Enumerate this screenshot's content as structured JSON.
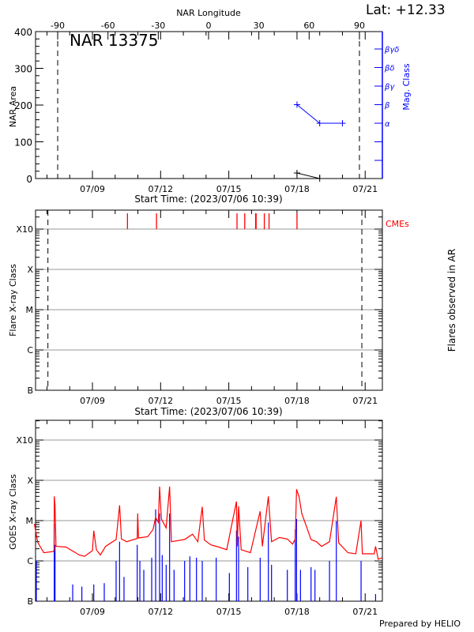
{
  "header": {
    "lat_label": "Lat: +12.33",
    "region_label": "NAR 13375",
    "credit": "Prepared by HELIO"
  },
  "chart_data": [
    {
      "type": "line",
      "panel": "nar",
      "xlabel": "Start Time: (2023/07/06 10:39)",
      "x_top_label": "NAR Longitude",
      "ylabel": "NAR Area",
      "y2label": "Mag. Class",
      "xrange": [
        "07/06 10:39",
        "07/21 18:00"
      ],
      "x_ticks": [
        "07/09",
        "07/12",
        "07/15",
        "07/18",
        "07/21"
      ],
      "x_top_ticks": [
        "-90",
        "-60",
        "-30",
        "0",
        "30",
        "60",
        "90"
      ],
      "ylim": [
        0,
        400
      ],
      "y_ticks": [
        "0",
        "100",
        "200",
        "300",
        "400"
      ],
      "y2_ticks": [
        "α",
        "β",
        "βγ",
        "βδ",
        "βγδ"
      ],
      "limb_longitudes": [
        -90,
        90
      ],
      "colors": {
        "area": "#000000",
        "mag_class": "#0000ff"
      },
      "area": [
        {
          "t": "07/18 00:00",
          "v": 15
        },
        {
          "t": "07/19 00:00",
          "v": 0
        }
      ],
      "mag_class": [
        {
          "t": "07/18 00:00",
          "v": "β"
        },
        {
          "t": "07/19 00:00",
          "v": "α"
        },
        {
          "t": "07/20 00:00",
          "v": "α"
        }
      ]
    },
    {
      "type": "scatter",
      "panel": "flares",
      "xlabel": "Start Time: (2023/07/06 10:39)",
      "ylabel": "Flare X-ray Class",
      "y2label": "Flares observed in AR",
      "legend": "CMEs",
      "y_scale": "log",
      "y_ticks": [
        "B",
        "C",
        "M",
        "X",
        "X10"
      ],
      "x_ticks": [
        "07/09",
        "07/12",
        "07/15",
        "07/18",
        "07/21"
      ],
      "grid": true,
      "limb_times": [
        "07/07 01:00",
        "07/20 20:30"
      ],
      "colors": {
        "cme": "#ff0000"
      },
      "flares": [],
      "cmes": [
        "07/10 13:00",
        "07/11 19:40",
        "07/15 08:40",
        "07/15 16:50",
        "07/16 04:20",
        "07/16 04:50",
        "07/16 13:30",
        "07/16 18:30",
        "07/18 00:00"
      ]
    },
    {
      "type": "line",
      "panel": "goes",
      "ylabel": "GOES X-ray Class",
      "y_scale": "log",
      "y_ticks": [
        "B",
        "C",
        "M",
        "X",
        "X10"
      ],
      "x_ticks": [
        "07/09",
        "07/12",
        "07/15",
        "07/18",
        "07/21"
      ],
      "grid": true,
      "series": [
        {
          "color": "#ff0000",
          "points": [
            [
              "07/06 10:39",
              "C8.3"
            ],
            [
              "07/06 14:10",
              "C2.9"
            ],
            [
              "07/06 20:35",
              "C1.6"
            ],
            [
              "07/07 06:20",
              "C1.7"
            ],
            [
              "07/07 07:25",
              "C1.8"
            ],
            [
              "07/07 07:40",
              "M4.0"
            ],
            [
              "07/07 08:30",
              "M2.4"
            ],
            [
              "07/07 09:35",
              "C2.3"
            ],
            [
              "07/07 20:10",
              "C2.2"
            ],
            [
              "07/08 10:05",
              "C1.4"
            ],
            [
              "07/08 15:40",
              "C1.3"
            ],
            [
              "07/09 00:00",
              "C1.8"
            ],
            [
              "07/09 01:25",
              "C5.6"
            ],
            [
              "07/09 04:10",
              "C1.9"
            ],
            [
              "07/09 08:20",
              "C1.4"
            ],
            [
              "07/09 13:55",
              "C2.3"
            ],
            [
              "07/10 01:00",
              "C3.4"
            ],
            [
              "07/10 04:40",
              "M2.4"
            ],
            [
              "07/10 06:35",
              "C3.5"
            ],
            [
              "07/10 12:10",
              "C3.0"
            ],
            [
              "07/10 23:17",
              "C3.6"
            ],
            [
              "07/10 23:50",
              "M1.5"
            ],
            [
              "07/11 00:40",
              "C3.7"
            ],
            [
              "07/11 10:25",
              "C4.0"
            ],
            [
              "07/11 16:00",
              "C6.0"
            ],
            [
              "07/11 18:45",
              "M1.2"
            ],
            [
              "07/11 21:32",
              "C9.0"
            ],
            [
              "07/11 22:55",
              "M7.0"
            ],
            [
              "07/12 00:52",
              "M1.1"
            ],
            [
              "07/12 05:52",
              "C6.6"
            ],
            [
              "07/12 09:29",
              "M7.0"
            ],
            [
              "07/12 11:25",
              "C3.0"
            ],
            [
              "07/13 01:20",
              "C3.4"
            ],
            [
              "07/13 09:40",
              "C4.6"
            ],
            [
              "07/13 15:15",
              "C3.0"
            ],
            [
              "07/13 19:58",
              "M2.2"
            ],
            [
              "07/13 22:10",
              "C3.3"
            ],
            [
              "07/14 05:08",
              "C2.5"
            ],
            [
              "07/14 13:30",
              "C2.2"
            ],
            [
              "07/14 21:50",
              "C1.9"
            ],
            [
              "07/15 08:07",
              "M3.0"
            ],
            [
              "07/15 09:00",
              "C2.3"
            ],
            [
              "07/15 10:20",
              "M2.3"
            ],
            [
              "07/15 13:07",
              "C1.9"
            ],
            [
              "07/15 22:52",
              "C1.6"
            ],
            [
              "07/16 09:08",
              "M1.7"
            ],
            [
              "07/16 11:24",
              "C2.3"
            ],
            [
              "07/16 17:47",
              "M4.0"
            ],
            [
              "07/16 21:07",
              "C3.0"
            ],
            [
              "07/17 05:28",
              "C3.8"
            ],
            [
              "07/17 13:48",
              "C3.5"
            ],
            [
              "07/17 19:22",
              "C2.6"
            ],
            [
              "07/17 22:08",
              "C3.5"
            ],
            [
              "07/17 23:32",
              "M6.0"
            ],
            [
              "07/18 02:18",
              "M3.8"
            ],
            [
              "07/18 05:05",
              "M1.5"
            ],
            [
              "07/18 09:15",
              "C8.0"
            ],
            [
              "07/18 14:50",
              "C3.4"
            ],
            [
              "07/18 20:24",
              "C3.0"
            ],
            [
              "07/19 01:58",
              "C2.3"
            ],
            [
              "07/19 10:20",
              "C3.0"
            ],
            [
              "07/19 17:32",
              "M3.9"
            ],
            [
              "07/19 20:02",
              "C2.8"
            ],
            [
              "07/20 05:46",
              "C1.6"
            ],
            [
              "07/20 14:07",
              "C1.5"
            ],
            [
              "07/20 19:40",
              "M1.0"
            ],
            [
              "07/20 21:04",
              "C1.5"
            ],
            [
              "07/21 09:36",
              "C1.5"
            ],
            [
              "07/21 11:00",
              "C2.3"
            ],
            [
              "07/21 13:48",
              "C1.1"
            ],
            [
              "07/21 18:00",
              "C1.2"
            ]
          ]
        },
        {
          "color": "#0000ff",
          "points": [
            [
              "07/06 12:45",
              "C1.0"
            ],
            [
              "07/07 07:40",
              "C8.3"
            ],
            [
              "07/07 08:30",
              "C2.5"
            ],
            [
              "07/08 03:10",
              "B2.6"
            ],
            [
              "07/08 12:50",
              "B2.3"
            ],
            [
              "07/09 01:25",
              "B2.6"
            ],
            [
              "07/09 12:30",
              "B2.8"
            ],
            [
              "07/10 01:00",
              "C1.0"
            ],
            [
              "07/10 04:40",
              "C3.0"
            ],
            [
              "07/10 09:20",
              "B4.0"
            ],
            [
              "07/10 23:17",
              "C2.5"
            ],
            [
              "07/11 02:05",
              "C1.0"
            ],
            [
              "07/11 06:15",
              "B6.0"
            ],
            [
              "07/11 14:35",
              "C1.2"
            ],
            [
              "07/11 18:45",
              "M1.9"
            ],
            [
              "07/11 22:55",
              "M1.5"
            ],
            [
              "07/12 01:42",
              "C1.4"
            ],
            [
              "07/12 05:52",
              "B8.0"
            ],
            [
              "07/12 09:29",
              "M1.5"
            ],
            [
              "07/12 14:13",
              "B6.0"
            ],
            [
              "07/13 01:20",
              "C1.0"
            ],
            [
              "07/13 06:54",
              "C1.3"
            ],
            [
              "07/13 13:52",
              "C1.2"
            ],
            [
              "07/13 19:58",
              "C1.0"
            ],
            [
              "07/14 10:42",
              "C1.2"
            ],
            [
              "07/15 00:36",
              "B5.0"
            ],
            [
              "07/15 08:07",
              "C5.7"
            ],
            [
              "07/15 10:20",
              "C4.0"
            ],
            [
              "07/15 20:05",
              "B7.0"
            ],
            [
              "07/16 09:08",
              "C1.2"
            ],
            [
              "07/16 17:47",
              "C9.0"
            ],
            [
              "07/16 21:07",
              "B8.0"
            ],
            [
              "07/17 13:48",
              "B6.0"
            ],
            [
              "07/17 22:08",
              "C6.0"
            ],
            [
              "07/17 23:32",
              "M1.1"
            ],
            [
              "07/18 03:42",
              "B6.0"
            ],
            [
              "07/18 14:50",
              "B7.0"
            ],
            [
              "07/18 19:00",
              "B6.0"
            ],
            [
              "07/19 10:20",
              "C1.0"
            ],
            [
              "07/19 17:32",
              "C9.7"
            ],
            [
              "07/20 19:40",
              "C1.0"
            ],
            [
              "07/21 11:00",
              "B1.5"
            ]
          ]
        }
      ]
    }
  ]
}
